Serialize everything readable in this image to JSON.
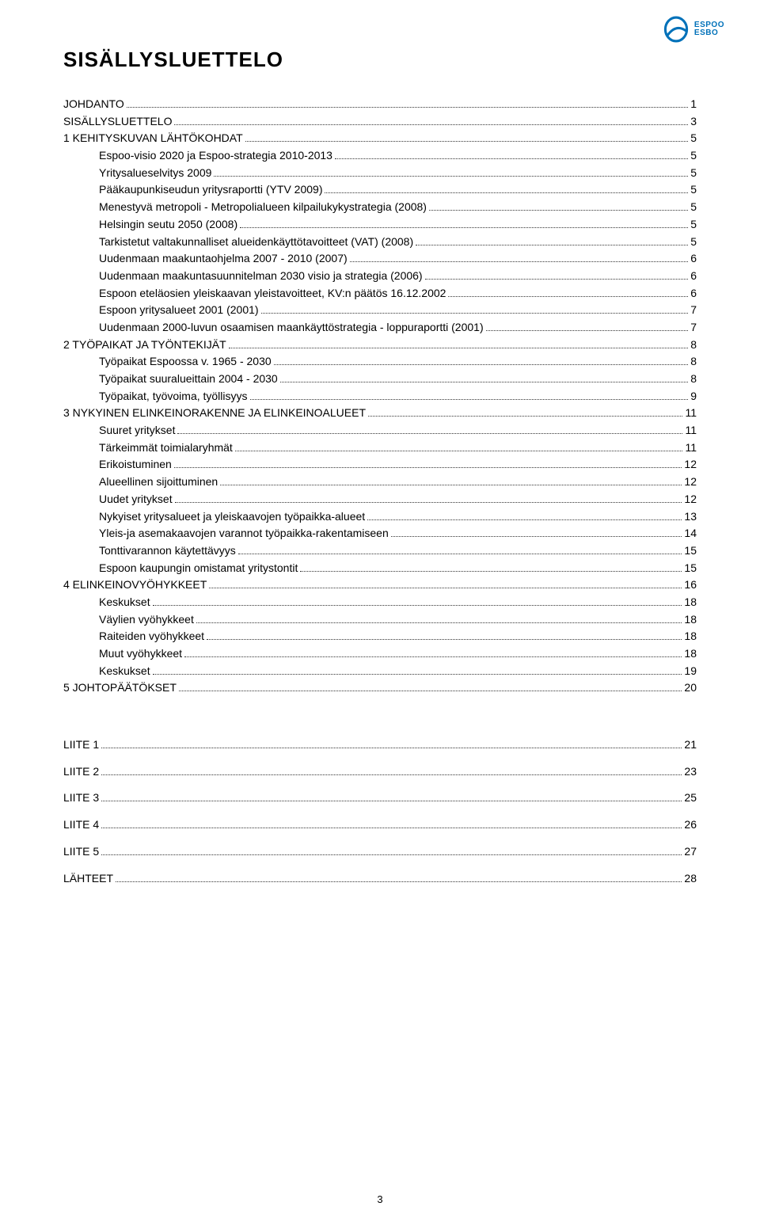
{
  "brand": {
    "line1": "ESPOO",
    "line2": "ESBO",
    "color": "#0071b9"
  },
  "title": "SISÄLLYSLUETTELO",
  "page_number": "3",
  "toc": [
    {
      "label": "JOHDANTO",
      "page": "1",
      "level": 0
    },
    {
      "label": "SISÄLLYSLUETTELO",
      "page": "3",
      "level": 0
    },
    {
      "label": "1 KEHITYSKUVAN LÄHTÖKOHDAT",
      "page": "5",
      "level": 0
    },
    {
      "label": "Espoo-visio 2020 ja Espoo-strategia 2010-2013",
      "page": "5",
      "level": 1
    },
    {
      "label": "Yritysalueselvitys 2009",
      "page": "5",
      "level": 1
    },
    {
      "label": "Pääkaupunkiseudun yritysraportti (YTV 2009)",
      "page": "5",
      "level": 1
    },
    {
      "label": "Menestyvä metropoli - Metropolialueen kilpailukykystrategia (2008)",
      "page": "5",
      "level": 1
    },
    {
      "label": "Helsingin seutu 2050 (2008)",
      "page": "5",
      "level": 1
    },
    {
      "label": "Tarkistetut valtakunnalliset alueidenkäyttötavoitteet (VAT) (2008)",
      "page": "5",
      "level": 1
    },
    {
      "label": "Uudenmaan maakuntaohjelma 2007 - 2010 (2007)",
      "page": "6",
      "level": 1
    },
    {
      "label": "Uudenmaan maakuntasuunnitelman 2030 visio ja strategia (2006)",
      "page": "6",
      "level": 1
    },
    {
      "label": "Espoon eteläosien yleiskaavan yleistavoitteet, KV:n päätös 16.12.2002",
      "page": "6",
      "level": 1
    },
    {
      "label": "Espoon yritysalueet 2001 (2001)",
      "page": "7",
      "level": 1
    },
    {
      "label": "Uudenmaan 2000-luvun osaamisen maankäyttöstrategia - loppuraportti (2001)",
      "page": "7",
      "level": 1
    },
    {
      "label": "2 TYÖPAIKAT JA TYÖNTEKIJÄT",
      "page": "8",
      "level": 0
    },
    {
      "label": "Työpaikat Espoossa v. 1965 -  2030",
      "page": "8",
      "level": 1
    },
    {
      "label": "Työpaikat suuralueittain 2004 - 2030",
      "page": "8",
      "level": 1
    },
    {
      "label": "Työpaikat, työvoima, työllisyys",
      "page": "9",
      "level": 1
    },
    {
      "label": "3 NYKYINEN ELINKEINORAKENNE JA ELINKEINOALUEET",
      "page": "11",
      "level": 0
    },
    {
      "label": "Suuret yritykset",
      "page": "11",
      "level": 1
    },
    {
      "label": "Tärkeimmät toimialaryhmät",
      "page": "11",
      "level": 1
    },
    {
      "label": "Erikoistuminen",
      "page": "12",
      "level": 1
    },
    {
      "label": "Alueellinen sijoittuminen",
      "page": "12",
      "level": 1
    },
    {
      "label": "Uudet yritykset",
      "page": "12",
      "level": 1
    },
    {
      "label": "Nykyiset yritysalueet ja yleiskaavojen työpaikka-alueet",
      "page": "13",
      "level": 1
    },
    {
      "label": "Yleis-ja asemakaavojen varannot työpaikka-rakentamiseen",
      "page": "14",
      "level": 1
    },
    {
      "label": "Tonttivarannon käytettävyys",
      "page": "15",
      "level": 1
    },
    {
      "label": "Espoon kaupungin omistamat yritystontit",
      "page": "15",
      "level": 1
    },
    {
      "label": "4 ELINKEINOVYÖHYKKEET",
      "page": "16",
      "level": 0
    },
    {
      "label": "Keskukset",
      "page": "18",
      "level": 1
    },
    {
      "label": "Väylien vyöhykkeet",
      "page": "18",
      "level": 1
    },
    {
      "label": "Raiteiden vyöhykkeet",
      "page": "18",
      "level": 1
    },
    {
      "label": "Muut vyöhykkeet",
      "page": "18",
      "level": 1
    },
    {
      "label": "Keskukset",
      "page": "19",
      "level": 1
    },
    {
      "label": "5 JOHTOPÄÄTÖKSET",
      "page": "20",
      "level": 0
    }
  ],
  "appendix": [
    {
      "label": "LIITE 1",
      "page": "21",
      "level": 0
    },
    {
      "label": "LIITE 2",
      "page": "23",
      "level": 0
    },
    {
      "label": "LIITE 3",
      "page": "25",
      "level": 0
    },
    {
      "label": "LIITE 4",
      "page": "26",
      "level": 0
    },
    {
      "label": "LIITE 5",
      "page": "27",
      "level": 0
    },
    {
      "label": "LÄHTEET",
      "page": "28",
      "level": 0
    }
  ]
}
